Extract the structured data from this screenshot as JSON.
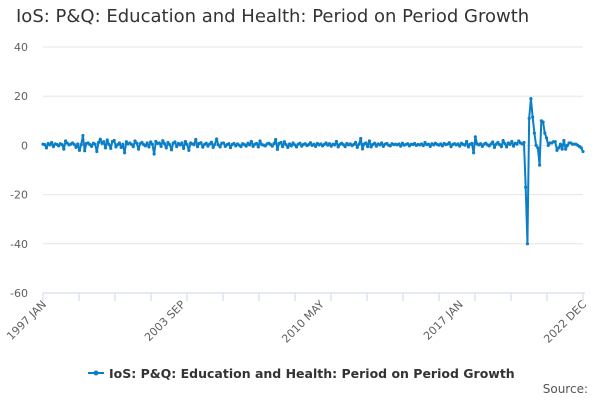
{
  "chart_data": {
    "type": "line",
    "title": "IoS: P&Q: Education and Health: Period on Period Growth",
    "xlabel": "",
    "ylabel": "",
    "x_start": "1997 JAN",
    "x_end": "2022 DEC",
    "frequency": "monthly",
    "x_tick_labels": [
      "1997 JAN",
      "2003 SEP",
      "2010 MAY",
      "2017 JAN",
      "2022 DEC"
    ],
    "ylim": [
      -60,
      40
    ],
    "y_ticks": [
      40,
      20,
      0,
      -20,
      -40,
      -60
    ],
    "grid": true,
    "legend_position": "bottom",
    "series": [
      {
        "name": "IoS: P&Q: Education and Health: Period on Period Growth",
        "color": "#0a7fc7",
        "values": [
          0.5,
          0.3,
          -1.0,
          0.8,
          0.2,
          1.2,
          -0.5,
          0.6,
          0.4,
          -0.2,
          0.7,
          0.3,
          -1.5,
          1.8,
          0.9,
          0.2,
          0.5,
          1.0,
          0.4,
          -0.8,
          0.6,
          -2.0,
          0.3,
          4.0,
          -2.2,
          0.8,
          1.0,
          0.3,
          -0.4,
          0.9,
          0.5,
          -2.5,
          1.2,
          2.5,
          0.8,
          1.5,
          -1.0,
          2.2,
          0.4,
          -1.2,
          1.6,
          2.0,
          -0.6,
          0.3,
          1.0,
          -0.8,
          0.5,
          -3.0,
          1.5,
          0.6,
          1.0,
          0.4,
          -0.5,
          1.8,
          0.9,
          -1.5,
          0.7,
          1.2,
          0.3,
          -0.2,
          1.0,
          -0.6,
          1.4,
          0.5,
          -3.5,
          1.6,
          0.8,
          1.0,
          -0.4,
          1.9,
          0.7,
          -1.0,
          1.2,
          0.3,
          -1.8,
          0.9,
          1.4,
          -0.5,
          0.8,
          0.2,
          1.0,
          -1.2,
          1.6,
          0.4,
          -2.0,
          1.0,
          0.6,
          0.3,
          2.4,
          -0.5,
          0.8,
          1.1,
          -0.7,
          0.4,
          0.9,
          -0.3,
          0.6,
          1.3,
          -0.8,
          0.5,
          2.6,
          0.2,
          -0.6,
          0.9,
          1.0,
          -0.4,
          0.3,
          0.7,
          -0.9,
          0.4,
          0.8,
          -0.2,
          0.6,
          0.1,
          -0.5,
          0.7,
          0.3,
          -0.3,
          0.9,
          0.2,
          1.6,
          -0.4,
          0.5,
          0.8,
          -0.6,
          1.8,
          0.3,
          0.1,
          -0.2,
          0.6,
          0.9,
          0.4,
          -0.3,
          0.7,
          2.4,
          -1.6,
          0.8,
          1.2,
          -0.5,
          1.5,
          0.3,
          -0.8,
          0.6,
          -0.2,
          1.0,
          0.2,
          -0.6,
          0.5,
          0.9,
          -0.3,
          0.4,
          0.7,
          -0.1,
          0.3,
          1.1,
          0.0,
          0.5,
          -0.4,
          0.8,
          0.2,
          0.6,
          -0.2,
          0.4,
          1.0,
          0.1,
          0.7,
          -0.3,
          0.5,
          0.2,
          1.6,
          -0.6,
          0.4,
          0.9,
          0.3,
          -0.5,
          0.8,
          0.2,
          0.6,
          -0.1,
          0.4,
          1.2,
          -0.8,
          0.5,
          2.8,
          -1.4,
          0.6,
          1.0,
          -0.5,
          1.8,
          -0.6,
          0.4,
          0.9,
          -0.3,
          0.6,
          0.2,
          1.0,
          -0.4,
          0.5,
          0.8,
          0.1,
          -0.2,
          0.7,
          0.3,
          0.5,
          0.2,
          0.6,
          -0.3,
          0.9,
          0.1,
          0.4,
          0.7,
          -0.2,
          0.5,
          0.3,
          0.8,
          0.0,
          0.4,
          0.2,
          0.6,
          -0.1,
          1.2,
          0.3,
          0.5,
          -0.4,
          0.7,
          0.2,
          0.9,
          0.4,
          0.1,
          0.6,
          -0.2,
          0.8,
          0.3,
          0.5,
          1.1,
          -0.5,
          0.4,
          0.7,
          0.2,
          0.6,
          -0.3,
          0.9,
          0.4,
          0.1,
          1.6,
          -0.6,
          0.5,
          0.8,
          -3.0,
          3.5,
          0.6,
          0.2,
          0.7,
          -0.4,
          0.5,
          0.9,
          0.2,
          -0.2,
          0.6,
          1.4,
          -0.8,
          0.5,
          1.2,
          0.3,
          -0.5,
          2.0,
          0.7,
          -0.6,
          1.0,
          0.4,
          1.6,
          -0.3,
          0.9,
          0.5,
          1.8,
          1.0,
          0.6,
          1.2,
          -17.0,
          -40.0,
          11.0,
          19.0,
          11.5,
          5.0,
          0.0,
          -1.0,
          -8.0,
          10.0,
          9.5,
          5.0,
          3.0,
          0.0,
          1.0,
          1.0,
          1.5,
          1.5,
          -2.0,
          -1.0,
          0.5,
          -1.5,
          2.0,
          -1.5,
          0.0,
          1.0,
          1.0,
          0.5,
          0.5,
          0.5,
          0.0,
          -0.5,
          -1.0,
          -2.5
        ]
      }
    ]
  },
  "footer": {
    "source_label": "Source:"
  }
}
